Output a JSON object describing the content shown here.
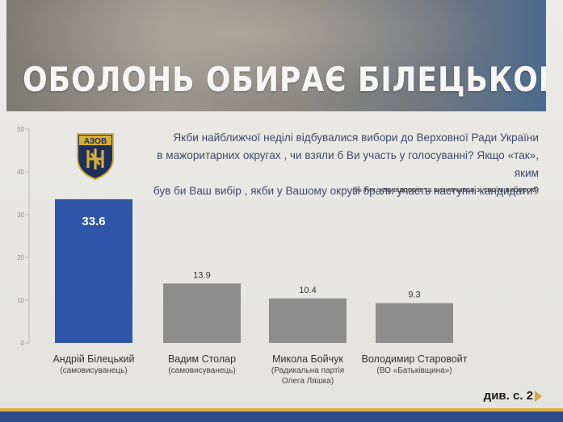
{
  "banner": {
    "title": "ОБОЛОНЬ ОБИРАЄ БІЛЕЦЬКОГО"
  },
  "logo": {
    "text": "АЗОВ"
  },
  "question": {
    "line1": "Якби найближчої неділі відбувалися вибори до Верховної Ради України",
    "line2": "в мажоритарних округах , чи взяли б Ви участь у голосуванні? Якщо «так», яким",
    "line3": "був би Ваш вибір , якби у Вашому окрузі брали участь наступні кандидати?",
    "note": "(% тих, хто відповів та визначився зі своїм вибором)"
  },
  "footer": {
    "ref": "див. с. 2"
  },
  "colors": {
    "highlight": "#2f55a8",
    "bars": "#8d8d8d",
    "banner_text": "#f6f6f4"
  },
  "chart_data": {
    "type": "bar",
    "categories": [
      "Андрій Білецький",
      "Вадим Столар",
      "Микола Бойчук",
      "Володимир Старовойт"
    ],
    "parties": [
      "(самовисуванець)",
      "(самовисуванець)",
      "(Радикальна партія Олега Ляшка)",
      "(ВО «Батьківщина»)"
    ],
    "values": [
      33.6,
      13.9,
      10.4,
      9.3
    ],
    "value_labels": [
      "33.6",
      "13.9",
      "10.4",
      "9.3"
    ],
    "yticks": [
      "0",
      "10",
      "20",
      "30",
      "40",
      "50"
    ],
    "ylim": [
      0,
      50
    ],
    "grid": false
  }
}
